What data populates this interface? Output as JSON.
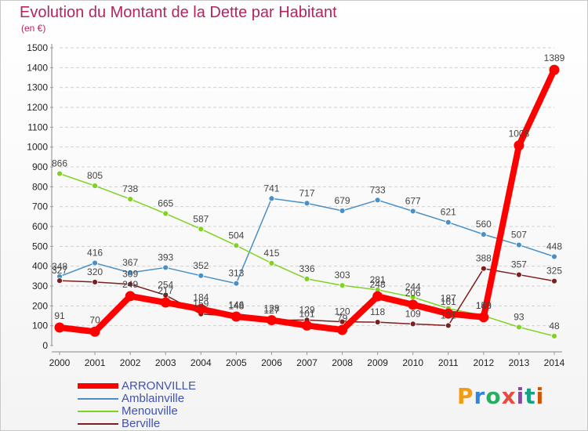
{
  "header": {
    "title": "Evolution du Montant de la Dette par Habitant",
    "subtitle": "(en €)"
  },
  "logo": {
    "text": "Proxiti",
    "colors": [
      "#f39c12",
      "#2e86de",
      "#27ae60",
      "#e74c3c",
      "#8e44ad",
      "#16a085",
      "#d35400"
    ]
  },
  "chart_data": {
    "type": "line",
    "x": [
      "2000",
      "2001",
      "2002",
      "2003",
      "2004",
      "2005",
      "2006",
      "2007",
      "2008",
      "2009",
      "2010",
      "2011",
      "2012",
      "2013",
      "2014"
    ],
    "ylim": [
      0,
      1500
    ],
    "yticks": [
      0,
      100,
      200,
      300,
      400,
      500,
      600,
      700,
      800,
      900,
      1000,
      1100,
      1200,
      1300,
      1400,
      1500
    ],
    "grid": "dashed horizontal",
    "legend_position": "bottom-left",
    "series": [
      {
        "name": "ARRONVILLE",
        "color": "#ff0000",
        "emphasis": true,
        "values": [
          91,
          70,
          249,
          217,
          184,
          146,
          128,
          101,
          79,
          248,
          206,
          161,
          143,
          1008,
          1389
        ]
      },
      {
        "name": "Amblainville",
        "color": "#4a90c8",
        "values": [
          348,
          416,
          367,
          393,
          352,
          313,
          741,
          717,
          679,
          733,
          677,
          621,
          560,
          507,
          448
        ]
      },
      {
        "name": "Menouville",
        "color": "#7ed321",
        "values": [
          866,
          805,
          738,
          665,
          587,
          504,
          415,
          336,
          303,
          281,
          244,
          187,
          150,
          93,
          48
        ]
      },
      {
        "name": "Berville",
        "color": "#7b1f1f",
        "values": [
          327,
          320,
          309,
          254,
          159,
          148,
          127,
          129,
          120,
          118,
          109,
          101,
          388,
          357,
          325
        ]
      }
    ]
  }
}
